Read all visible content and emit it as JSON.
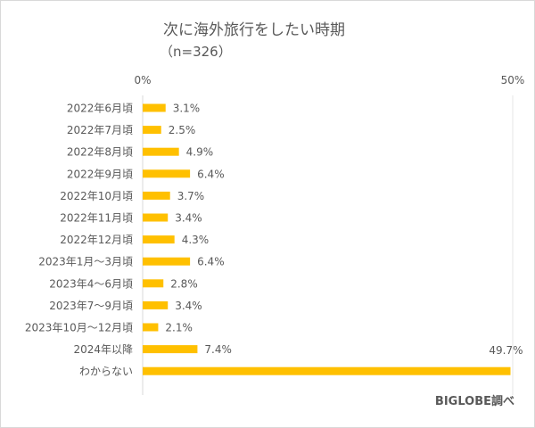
{
  "chart_data": {
    "type": "bar",
    "orientation": "horizontal",
    "title": "次に海外旅行をしたい時期",
    "subtitle": "（n=326）",
    "categories": [
      "2022年6月頃",
      "2022年7月頃",
      "2022年8月頃",
      "2022年9月頃",
      "2022年10月頃",
      "2022年11月頃",
      "2022年12月頃",
      "2023年1月～3月頃",
      "2023年4～6月頃",
      "2023年7～9月頃",
      "2023年10月～12月頃",
      "2024年以降",
      "わからない"
    ],
    "values": [
      3.1,
      2.5,
      4.9,
      6.4,
      3.7,
      3.4,
      4.3,
      6.4,
      2.8,
      3.4,
      2.1,
      7.4,
      49.7
    ],
    "data_labels": [
      "3.1%",
      "2.5%",
      "4.9%",
      "6.4%",
      "3.7%",
      "3.4%",
      "4.3%",
      "6.4%",
      "2.8%",
      "3.4%",
      "2.1%",
      "7.4%",
      "49.7%"
    ],
    "xlim": [
      0,
      50
    ],
    "x_ticks": [
      "0%",
      "50%"
    ],
    "xlabel": "",
    "ylabel": "",
    "grid": false,
    "bar_color": "#FFC000",
    "source": "BIGLOBE調べ"
  }
}
